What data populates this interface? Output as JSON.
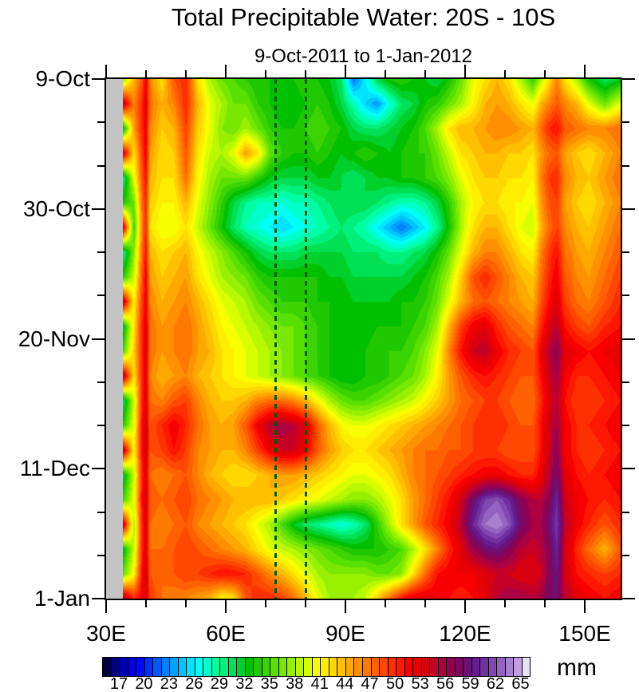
{
  "page": {
    "background": "#ffffff"
  },
  "chart_data": {
    "type": "heatmap",
    "title": "Total Precipitable Water: 20S - 10S",
    "subtitle": "9-Oct-2011 to 1-Jan-2012",
    "units_label": "mm",
    "xaxis": {
      "range": [
        30,
        159
      ],
      "major_ticks": [
        {
          "value": 30,
          "label": "30E"
        },
        {
          "value": 60,
          "label": "60E"
        },
        {
          "value": 90,
          "label": "90E"
        },
        {
          "value": 120,
          "label": "120E"
        },
        {
          "value": 150,
          "label": "150E"
        }
      ],
      "minor_ticks": [
        40,
        50,
        70,
        80,
        100,
        110,
        130,
        140
      ]
    },
    "yaxis": {
      "range_days": [
        0,
        84
      ],
      "major_ticks": [
        {
          "day": 0,
          "label": "9-Oct"
        },
        {
          "day": 21,
          "label": "30-Oct"
        },
        {
          "day": 42,
          "label": "20-Nov"
        },
        {
          "day": 63,
          "label": "11-Dec"
        },
        {
          "day": 84,
          "label": "1-Jan"
        }
      ],
      "minor_ticks": [
        7,
        14,
        28,
        35,
        49,
        56,
        70,
        77
      ]
    },
    "colorbar": {
      "min": 15,
      "max": 66,
      "step_mm": 1,
      "tick_labels": [
        17,
        20,
        23,
        26,
        29,
        32,
        35,
        38,
        41,
        44,
        47,
        50,
        53,
        56,
        59,
        62,
        65
      ],
      "colors": [
        "#000040",
        "#000080",
        "#0000b0",
        "#0000e0",
        "#0008ff",
        "#0030ff",
        "#0058ff",
        "#0080ff",
        "#00a0ff",
        "#00c4ff",
        "#00e4ff",
        "#00fff4",
        "#00ffcc",
        "#00ffa4",
        "#00f07c",
        "#00e054",
        "#00d02c",
        "#00c000",
        "#20c800",
        "#3cd400",
        "#58e000",
        "#78e800",
        "#98f000",
        "#b8f800",
        "#d8ff00",
        "#f8ff00",
        "#ffee00",
        "#ffd800",
        "#ffc000",
        "#ffa800",
        "#ff9000",
        "#ff7800",
        "#ff6000",
        "#ff4800",
        "#ff3000",
        "#ff1800",
        "#f80000",
        "#e80000",
        "#d80010",
        "#c40028",
        "#ac0040",
        "#940050",
        "#7c0860",
        "#6c1078",
        "#661c90",
        "#7030a0",
        "#8048b0",
        "#9464c0",
        "#a880d0",
        "#c0a0e0",
        "#e8e0f4"
      ]
    },
    "annotations": {
      "dashed_lines_lon": [
        72.5,
        80
      ],
      "dashed_line_color": "#005a00",
      "missing_data_band": {
        "lon_min": 30,
        "lon_max": 34.2,
        "color": "#c3c3c3"
      }
    },
    "grid": {
      "lons": [
        30,
        34,
        37,
        39,
        40,
        41,
        44,
        47,
        50,
        53,
        56,
        59,
        62,
        65,
        68,
        71,
        74,
        77,
        80,
        83,
        86,
        89,
        92,
        95,
        98,
        101,
        104,
        107,
        110,
        113,
        116,
        119,
        122,
        125,
        128,
        131,
        134,
        137,
        139,
        141,
        143,
        145,
        148,
        151,
        155,
        159
      ],
      "days": [
        0,
        4,
        8,
        12,
        16,
        20,
        24,
        28,
        32,
        36,
        40,
        44,
        48,
        52,
        56,
        60,
        64,
        68,
        72,
        76,
        80,
        84
      ],
      "values": [
        [
          34,
          36,
          44,
          48,
          52,
          46,
          42,
          48,
          50,
          42,
          38,
          36,
          35,
          34,
          33,
          33,
          32,
          33,
          34,
          33,
          32,
          30,
          22,
          26,
          31,
          33,
          34,
          33,
          32,
          31,
          33,
          36,
          40,
          42,
          44,
          42,
          38,
          34,
          38,
          42,
          46,
          42,
          38,
          33,
          30,
          32
        ],
        [
          35,
          55,
          46,
          50,
          53,
          47,
          44,
          46,
          50,
          44,
          40,
          38,
          36,
          36,
          34,
          33,
          32,
          32,
          33,
          34,
          33,
          31,
          28,
          25,
          23,
          27,
          30,
          31,
          33,
          34,
          36,
          38,
          41,
          44,
          45,
          44,
          42,
          40,
          44,
          46,
          48,
          46,
          44,
          40,
          36,
          40
        ],
        [
          36,
          30,
          45,
          50,
          52,
          46,
          43,
          44,
          49,
          43,
          40,
          37,
          36,
          38,
          36,
          34,
          33,
          33,
          34,
          35,
          34,
          33,
          31,
          30,
          30,
          31,
          32,
          33,
          35,
          38,
          42,
          44,
          44,
          45,
          46,
          46,
          45,
          44,
          47,
          50,
          51,
          48,
          47,
          46,
          46,
          47
        ],
        [
          36,
          55,
          42,
          49,
          52,
          45,
          42,
          43,
          48,
          42,
          39,
          38,
          40,
          45,
          42,
          36,
          34,
          33,
          33,
          34,
          33,
          32,
          33,
          34,
          33,
          32,
          33,
          34,
          34,
          36,
          39,
          42,
          43,
          44,
          44,
          43,
          43,
          42,
          45,
          47,
          48,
          45,
          43,
          42,
          44,
          46
        ],
        [
          35,
          28,
          40,
          48,
          51,
          44,
          42,
          42,
          47,
          41,
          38,
          36,
          36,
          36,
          34,
          32,
          31,
          31,
          31,
          32,
          32,
          31,
          30,
          31,
          32,
          32,
          33,
          33,
          34,
          35,
          37,
          40,
          42,
          43,
          43,
          42,
          42,
          41,
          46,
          49,
          50,
          46,
          44,
          43,
          45,
          47
        ],
        [
          34,
          33,
          36,
          47,
          50,
          43,
          41,
          41,
          44,
          40,
          37,
          34,
          31,
          29,
          28,
          28,
          27,
          28,
          28,
          29,
          30,
          31,
          31,
          31,
          30,
          29,
          28,
          28,
          29,
          31,
          34,
          38,
          41,
          42,
          42,
          41,
          41,
          40,
          45,
          48,
          49,
          45,
          43,
          42,
          44,
          46
        ],
        [
          34,
          56,
          34,
          46,
          50,
          42,
          40,
          40,
          42,
          39,
          36,
          33,
          30,
          28,
          27,
          26,
          25,
          26,
          27,
          28,
          29,
          30,
          29,
          28,
          26,
          24,
          22,
          24,
          26,
          29,
          33,
          38,
          42,
          44,
          44,
          42,
          40,
          39,
          44,
          47,
          49,
          46,
          44,
          43,
          45,
          47
        ],
        [
          35,
          28,
          37,
          47,
          51,
          44,
          42,
          43,
          44,
          41,
          39,
          37,
          35,
          33,
          31,
          30,
          30,
          30,
          31,
          31,
          31,
          31,
          30,
          30,
          30,
          29,
          29,
          30,
          31,
          33,
          36,
          40,
          44,
          46,
          46,
          44,
          42,
          41,
          46,
          49,
          51,
          47,
          45,
          44,
          46,
          48
        ],
        [
          36,
          33,
          39,
          48,
          52,
          45,
          43,
          44,
          45,
          42,
          40,
          38,
          37,
          36,
          34,
          33,
          33,
          33,
          33,
          33,
          32,
          32,
          31,
          31,
          31,
          31,
          31,
          32,
          33,
          35,
          38,
          43,
          48,
          50,
          48,
          46,
          44,
          43,
          47,
          50,
          52,
          48,
          46,
          45,
          47,
          49
        ],
        [
          37,
          56,
          41,
          49,
          52,
          46,
          44,
          45,
          46,
          44,
          42,
          40,
          39,
          38,
          36,
          35,
          34,
          34,
          34,
          33,
          33,
          33,
          32,
          32,
          32,
          32,
          33,
          33,
          34,
          36,
          40,
          44,
          47,
          48,
          47,
          46,
          45,
          44,
          48,
          51,
          53,
          49,
          47,
          46,
          48,
          50
        ],
        [
          37,
          30,
          42,
          50,
          53,
          47,
          45,
          46,
          47,
          45,
          43,
          41,
          40,
          39,
          38,
          37,
          36,
          36,
          35,
          34,
          33,
          32,
          32,
          32,
          33,
          33,
          33,
          34,
          35,
          38,
          44,
          49,
          52,
          53,
          50,
          48,
          47,
          46,
          50,
          53,
          55,
          51,
          49,
          48,
          50,
          51
        ],
        [
          38,
          34,
          43,
          50,
          53,
          47,
          45,
          46,
          47,
          45,
          44,
          42,
          41,
          40,
          39,
          38,
          37,
          36,
          35,
          34,
          33,
          32,
          32,
          33,
          34,
          34,
          34,
          35,
          37,
          40,
          46,
          51,
          54,
          55,
          52,
          50,
          49,
          48,
          52,
          55,
          57,
          53,
          52,
          51,
          52,
          53
        ],
        [
          38,
          56,
          42,
          50,
          53,
          46,
          44,
          45,
          46,
          44,
          43,
          42,
          41,
          40,
          39,
          38,
          37,
          36,
          35,
          34,
          33,
          32,
          32,
          33,
          33,
          34,
          35,
          36,
          38,
          41,
          45,
          48,
          50,
          51,
          50,
          49,
          48,
          48,
          51,
          54,
          56,
          52,
          50,
          50,
          51,
          52
        ],
        [
          37,
          29,
          39,
          50,
          53,
          47,
          46,
          48,
          49,
          46,
          44,
          43,
          43,
          44,
          46,
          47,
          47,
          46,
          44,
          41,
          38,
          36,
          35,
          35,
          36,
          37,
          38,
          39,
          41,
          43,
          45,
          47,
          48,
          49,
          49,
          48,
          47,
          47,
          50,
          53,
          55,
          51,
          49,
          49,
          50,
          51
        ],
        [
          38,
          33,
          40,
          51,
          54,
          48,
          50,
          52,
          50,
          47,
          45,
          44,
          45,
          48,
          52,
          55,
          56,
          55,
          53,
          48,
          44,
          41,
          40,
          40,
          41,
          42,
          43,
          44,
          45,
          46,
          47,
          48,
          49,
          50,
          50,
          49,
          48,
          48,
          51,
          54,
          56,
          52,
          50,
          50,
          51,
          52
        ],
        [
          38,
          56,
          41,
          51,
          54,
          48,
          49,
          51,
          49,
          46,
          45,
          44,
          44,
          46,
          49,
          52,
          54,
          54,
          52,
          48,
          45,
          43,
          42,
          42,
          43,
          44,
          45,
          46,
          47,
          47,
          48,
          48,
          49,
          49,
          49,
          48,
          48,
          48,
          51,
          54,
          57,
          52,
          50,
          49,
          50,
          51
        ],
        [
          38,
          30,
          39,
          50,
          53,
          47,
          46,
          47,
          48,
          46,
          44,
          43,
          42,
          42,
          43,
          44,
          45,
          45,
          44,
          43,
          42,
          41,
          40,
          40,
          41,
          42,
          44,
          46,
          47,
          48,
          49,
          50,
          51,
          52,
          52,
          51,
          50,
          50,
          52,
          55,
          58,
          53,
          51,
          50,
          51,
          52
        ],
        [
          38,
          34,
          40,
          51,
          54,
          48,
          47,
          48,
          49,
          47,
          46,
          45,
          44,
          44,
          44,
          44,
          43,
          42,
          41,
          40,
          39,
          38,
          37,
          37,
          38,
          40,
          42,
          45,
          47,
          49,
          51,
          54,
          58,
          61,
          62,
          60,
          57,
          55,
          55,
          57,
          60,
          54,
          52,
          51,
          50,
          51
        ],
        [
          38,
          56,
          38,
          50,
          53,
          47,
          46,
          47,
          48,
          46,
          45,
          44,
          43,
          42,
          40,
          38,
          35,
          32,
          30,
          29,
          28,
          27,
          28,
          30,
          34,
          38,
          42,
          45,
          48,
          50,
          52,
          55,
          60,
          63,
          64,
          62,
          58,
          56,
          56,
          58,
          61,
          55,
          52,
          50,
          48,
          50
        ],
        [
          38,
          31,
          39,
          50,
          53,
          47,
          47,
          48,
          49,
          48,
          47,
          46,
          45,
          44,
          42,
          40,
          39,
          38,
          37,
          36,
          35,
          34,
          33,
          33,
          33,
          34,
          35,
          38,
          42,
          46,
          50,
          53,
          56,
          58,
          59,
          57,
          55,
          54,
          55,
          57,
          60,
          54,
          50,
          47,
          44,
          48
        ],
        [
          38,
          35,
          41,
          51,
          54,
          48,
          47,
          48,
          49,
          49,
          50,
          51,
          51,
          50,
          48,
          46,
          44,
          42,
          40,
          38,
          37,
          37,
          37,
          37,
          36,
          36,
          37,
          42,
          47,
          51,
          52,
          52,
          52,
          53,
          54,
          54,
          53,
          53,
          54,
          57,
          59,
          54,
          51,
          50,
          49,
          50
        ],
        [
          40,
          56,
          50,
          52,
          53,
          49,
          47,
          46,
          46,
          45,
          44,
          41,
          42,
          48,
          50,
          50,
          49,
          47,
          44,
          40,
          38,
          38,
          38,
          39,
          43,
          47,
          51,
          53,
          53,
          52,
          51,
          50,
          51,
          53,
          55,
          56,
          56,
          55,
          56,
          58,
          58,
          55,
          53,
          52,
          51,
          52
        ]
      ]
    }
  }
}
